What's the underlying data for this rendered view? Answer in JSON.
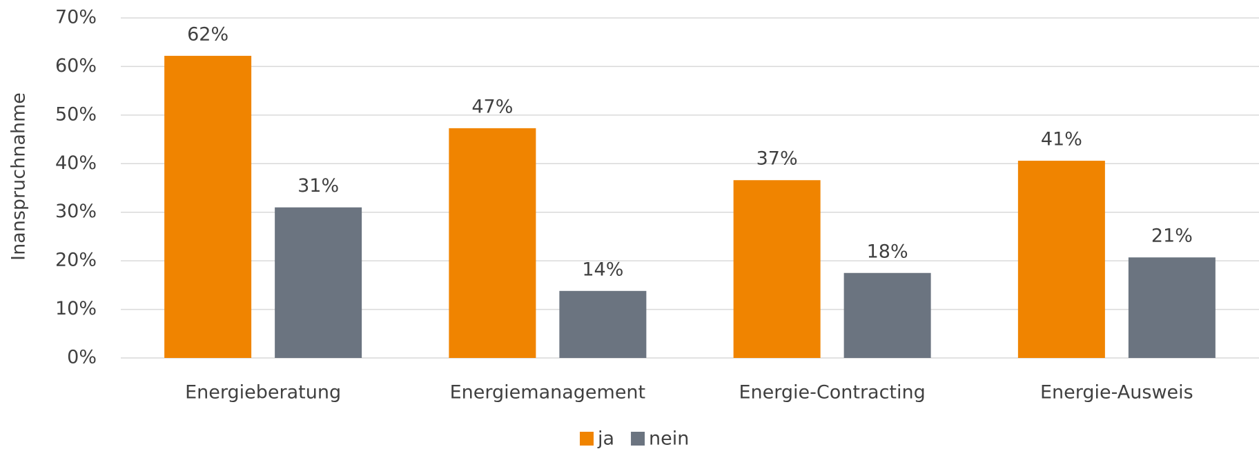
{
  "chart_data": {
    "type": "bar",
    "y_axis_label": "Inanspruchnahme",
    "categories": [
      "Energieberatung",
      "Energiemanagement",
      "Energie-Contracting",
      "Energie-Ausweis"
    ],
    "series": [
      {
        "name": "ja",
        "color": "#f08400",
        "values": [
          62.2,
          47.3,
          36.6,
          40.6
        ],
        "value_labels": [
          "62%",
          "47%",
          "37%",
          "41%"
        ]
      },
      {
        "name": "nein",
        "color": "#6b7480",
        "values": [
          31.0,
          13.8,
          17.5,
          20.7
        ],
        "value_labels": [
          "31%",
          "14%",
          "18%",
          "21%"
        ]
      }
    ],
    "ylim": [
      0,
      70
    ],
    "yticks": [
      {
        "value": 0,
        "label": "0%"
      },
      {
        "value": 10,
        "label": "10%"
      },
      {
        "value": 20,
        "label": "20%"
      },
      {
        "value": 30,
        "label": "30%"
      },
      {
        "value": 40,
        "label": "40%"
      },
      {
        "value": 50,
        "label": "50%"
      },
      {
        "value": 60,
        "label": "60%"
      },
      {
        "value": 70,
        "label": "70%"
      }
    ],
    "grid": true,
    "legend": "bottom"
  }
}
